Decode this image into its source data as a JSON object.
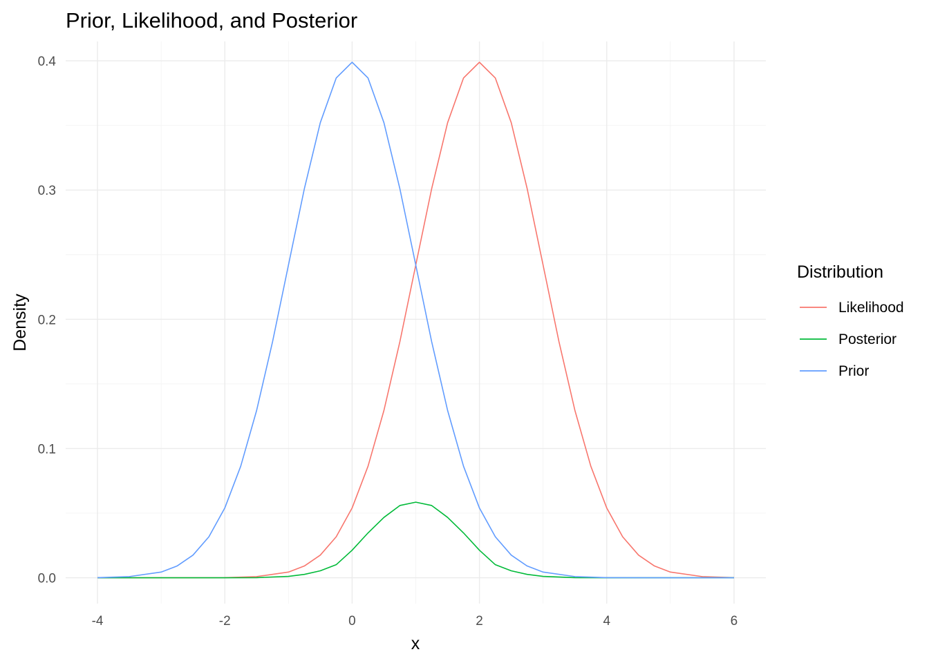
{
  "chart_data": {
    "type": "line",
    "title": "Prior, Likelihood, and Posterior",
    "xlabel": "x",
    "ylabel": "Density",
    "xlim": [
      -4.5,
      6.5
    ],
    "ylim": [
      -0.02,
      0.415
    ],
    "x_ticks": [
      -4,
      -2,
      0,
      2,
      4,
      6
    ],
    "x_tick_labels": [
      "-4",
      "-2",
      "0",
      "2",
      "4",
      "6"
    ],
    "y_ticks": [
      0.0,
      0.1,
      0.2,
      0.3,
      0.4
    ],
    "y_tick_labels": [
      "0.0",
      "0.1",
      "0.2",
      "0.3",
      "0.4"
    ],
    "grid": true,
    "legend": {
      "title": "Distribution",
      "position": "right"
    },
    "series": [
      {
        "name": "Likelihood",
        "color": "#F8766D",
        "x": [
          -4,
          -3.5,
          -3,
          -2.5,
          -2,
          -1.5,
          -1,
          -0.75,
          -0.5,
          -0.25,
          0,
          0.25,
          0.5,
          0.75,
          1,
          1.25,
          1.5,
          1.75,
          2,
          2.25,
          2.5,
          2.75,
          3,
          3.25,
          3.5,
          3.75,
          4,
          4.25,
          4.5,
          4.75,
          5,
          5.5,
          6
        ],
        "y": [
          0,
          0,
          0,
          0,
          0.0001,
          0.0009,
          0.0044,
          0.0091,
          0.0175,
          0.0317,
          0.054,
          0.0863,
          0.1295,
          0.1826,
          0.242,
          0.3011,
          0.3521,
          0.3867,
          0.3989,
          0.3867,
          0.3521,
          0.3011,
          0.242,
          0.1826,
          0.1295,
          0.0863,
          0.054,
          0.0317,
          0.0175,
          0.0091,
          0.0044,
          0.0009,
          0.0001
        ]
      },
      {
        "name": "Posterior",
        "color": "#00BA38",
        "x": [
          -4,
          -3,
          -2,
          -1.5,
          -1,
          -0.75,
          -0.5,
          -0.25,
          0,
          0.25,
          0.5,
          0.75,
          1,
          1.25,
          1.5,
          1.75,
          2,
          2.25,
          2.5,
          2.75,
          3,
          3.5,
          4,
          5,
          6
        ],
        "y": [
          0,
          0,
          0,
          0.0001,
          0.0011,
          0.0026,
          0.0054,
          0.0101,
          0.0213,
          0.0347,
          0.0467,
          0.0559,
          0.0585,
          0.0559,
          0.0467,
          0.0347,
          0.0213,
          0.0101,
          0.0054,
          0.0026,
          0.0011,
          0.0001,
          0,
          0,
          0
        ]
      },
      {
        "name": "Prior",
        "color": "#619CFF",
        "x": [
          -4,
          -3.5,
          -3,
          -2.75,
          -2.5,
          -2.25,
          -2,
          -1.75,
          -1.5,
          -1.25,
          -1,
          -0.75,
          -0.5,
          -0.25,
          0,
          0.25,
          0.5,
          0.75,
          1,
          1.25,
          1.5,
          1.75,
          2,
          2.25,
          2.5,
          2.75,
          3,
          3.5,
          4,
          5,
          6
        ],
        "y": [
          0.0001,
          0.0009,
          0.0044,
          0.0091,
          0.0175,
          0.0317,
          0.054,
          0.0863,
          0.1295,
          0.1826,
          0.242,
          0.3011,
          0.3521,
          0.3867,
          0.3989,
          0.3867,
          0.3521,
          0.3011,
          0.242,
          0.1826,
          0.1295,
          0.0863,
          0.054,
          0.0317,
          0.0175,
          0.0091,
          0.0044,
          0.0009,
          0.0001,
          0,
          0
        ]
      }
    ]
  }
}
